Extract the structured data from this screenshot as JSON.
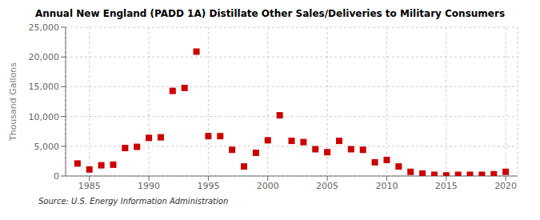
{
  "chart_data": {
    "type": "scatter",
    "title": "Annual New England (PADD 1A) Distillate Other Sales/Deliveries to Military Consumers",
    "ylabel": "Thousand Gallons",
    "annotations": [
      "Source: U.S. Energy Information Administration"
    ],
    "x": [
      1984,
      1985,
      1986,
      1987,
      1988,
      1989,
      1990,
      1991,
      1992,
      1993,
      1994,
      1995,
      1996,
      1997,
      1998,
      1999,
      2000,
      2001,
      2002,
      2003,
      2004,
      2005,
      2006,
      2007,
      2008,
      2009,
      2010,
      2011,
      2012,
      2013,
      2014,
      2015,
      2016,
      2017,
      2018,
      2019,
      2020
    ],
    "values": [
      2100,
      1100,
      1800,
      1900,
      4700,
      4900,
      6400,
      6500,
      14300,
      14800,
      20900,
      6700,
      6700,
      4400,
      1600,
      3900,
      6000,
      10200,
      5900,
      5700,
      4500,
      4000,
      5900,
      4500,
      4400,
      2300,
      2700,
      1600,
      700,
      400,
      200,
      100,
      200,
      200,
      200,
      300,
      700
    ],
    "color": "#cc0000",
    "marker": "square",
    "xlim": [
      1983,
      2021
    ],
    "xticks": [
      1985,
      1990,
      1995,
      2000,
      2005,
      2010,
      2015,
      2020
    ],
    "ylim": [
      0,
      25000
    ],
    "yticks": [
      0,
      {
        "value": 5000,
        "label": "5,000"
      },
      {
        "value": 10000,
        "label": "10,000"
      },
      {
        "value": 15000,
        "label": "15,000"
      },
      {
        "value": 20000,
        "label": "20,000"
      },
      {
        "value": 25000,
        "label": "25,000"
      }
    ],
    "grid": true
  }
}
